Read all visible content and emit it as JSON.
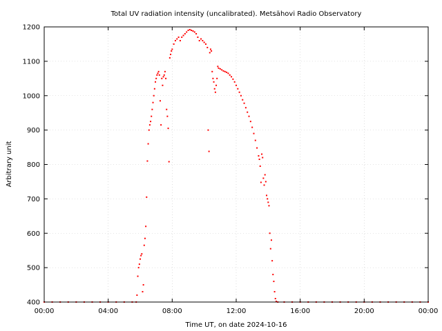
{
  "chart_data": {
    "type": "scatter",
    "title": "Total UV radiation intensity (uncalibrated). Metsähovi Radio Observatory",
    "xlabel": "Time UT, on date 2024-10-16",
    "ylabel": "Arbitrary unit",
    "xlim": [
      0,
      24
    ],
    "ylim": [
      400,
      1200
    ],
    "x_ticks": [
      0,
      4,
      8,
      12,
      16,
      20,
      24
    ],
    "x_tick_labels": [
      "00:00",
      "04:00",
      "08:00",
      "12:00",
      "16:00",
      "20:00",
      "00:00"
    ],
    "y_ticks": [
      400,
      500,
      600,
      700,
      800,
      900,
      1000,
      1100,
      1200
    ],
    "grid": true,
    "marker_color": "#ff0000",
    "series": [
      {
        "x_unit": "hours UT",
        "points": [
          [
            0.0,
            400
          ],
          [
            0.5,
            400
          ],
          [
            1.0,
            400
          ],
          [
            1.5,
            400
          ],
          [
            2.0,
            400
          ],
          [
            2.5,
            400
          ],
          [
            3.0,
            400
          ],
          [
            3.5,
            400
          ],
          [
            4.0,
            400
          ],
          [
            4.5,
            400
          ],
          [
            5.0,
            400
          ],
          [
            5.5,
            400
          ],
          [
            5.75,
            400
          ],
          [
            5.8,
            420
          ],
          [
            5.85,
            475
          ],
          [
            5.9,
            500
          ],
          [
            5.95,
            510
          ],
          [
            6.0,
            525
          ],
          [
            6.05,
            535
          ],
          [
            6.1,
            540
          ],
          [
            6.15,
            430
          ],
          [
            6.2,
            450
          ],
          [
            6.25,
            565
          ],
          [
            6.3,
            585
          ],
          [
            6.35,
            620
          ],
          [
            6.4,
            705
          ],
          [
            6.45,
            810
          ],
          [
            6.5,
            860
          ],
          [
            6.55,
            900
          ],
          [
            6.6,
            915
          ],
          [
            6.65,
            925
          ],
          [
            6.7,
            940
          ],
          [
            6.75,
            960
          ],
          [
            6.8,
            980
          ],
          [
            6.85,
            1000
          ],
          [
            6.9,
            1020
          ],
          [
            6.95,
            1040
          ],
          [
            7.0,
            1050
          ],
          [
            7.05,
            1060
          ],
          [
            7.1,
            1065
          ],
          [
            7.15,
            1070
          ],
          [
            7.2,
            1060
          ],
          [
            7.25,
            985
          ],
          [
            7.3,
            915
          ],
          [
            7.35,
            1050
          ],
          [
            7.4,
            1030
          ],
          [
            7.45,
            1055
          ],
          [
            7.5,
            1060
          ],
          [
            7.55,
            1070
          ],
          [
            7.6,
            1050
          ],
          [
            7.65,
            960
          ],
          [
            7.7,
            940
          ],
          [
            7.75,
            905
          ],
          [
            7.8,
            808
          ],
          [
            7.85,
            1110
          ],
          [
            7.9,
            1120
          ],
          [
            7.95,
            1130
          ],
          [
            8.0,
            1135
          ],
          [
            8.1,
            1150
          ],
          [
            8.2,
            1160
          ],
          [
            8.3,
            1165
          ],
          [
            8.4,
            1170
          ],
          [
            8.5,
            1160
          ],
          [
            8.6,
            1170
          ],
          [
            8.7,
            1175
          ],
          [
            8.8,
            1180
          ],
          [
            8.9,
            1185
          ],
          [
            9.0,
            1190
          ],
          [
            9.1,
            1192
          ],
          [
            9.2,
            1190
          ],
          [
            9.3,
            1188
          ],
          [
            9.4,
            1185
          ],
          [
            9.5,
            1180
          ],
          [
            9.6,
            1170
          ],
          [
            9.7,
            1160
          ],
          [
            9.8,
            1165
          ],
          [
            9.9,
            1160
          ],
          [
            10.0,
            1155
          ],
          [
            10.1,
            1150
          ],
          [
            10.2,
            1140
          ],
          [
            10.25,
            900
          ],
          [
            10.3,
            838
          ],
          [
            10.35,
            1125
          ],
          [
            10.4,
            1135
          ],
          [
            10.45,
            1130
          ],
          [
            10.5,
            1070
          ],
          [
            10.55,
            1050
          ],
          [
            10.6,
            1040
          ],
          [
            10.65,
            1020
          ],
          [
            10.7,
            1010
          ],
          [
            10.75,
            1030
          ],
          [
            10.8,
            1050
          ],
          [
            10.85,
            1085
          ],
          [
            10.9,
            1080
          ],
          [
            11.0,
            1078
          ],
          [
            11.1,
            1075
          ],
          [
            11.2,
            1072
          ],
          [
            11.3,
            1070
          ],
          [
            11.4,
            1068
          ],
          [
            11.5,
            1065
          ],
          [
            11.6,
            1060
          ],
          [
            11.7,
            1055
          ],
          [
            11.8,
            1048
          ],
          [
            11.9,
            1040
          ],
          [
            12.0,
            1030
          ],
          [
            12.1,
            1020
          ],
          [
            12.2,
            1010
          ],
          [
            12.3,
            1000
          ],
          [
            12.4,
            988
          ],
          [
            12.5,
            978
          ],
          [
            12.6,
            965
          ],
          [
            12.7,
            952
          ],
          [
            12.8,
            940
          ],
          [
            12.9,
            925
          ],
          [
            13.0,
            908
          ],
          [
            13.1,
            890
          ],
          [
            13.2,
            870
          ],
          [
            13.3,
            848
          ],
          [
            13.4,
            825
          ],
          [
            13.45,
            815
          ],
          [
            13.5,
            795
          ],
          [
            13.55,
            748
          ],
          [
            13.6,
            830
          ],
          [
            13.65,
            820
          ],
          [
            13.7,
            760
          ],
          [
            13.75,
            740
          ],
          [
            13.8,
            770
          ],
          [
            13.85,
            750
          ],
          [
            13.9,
            710
          ],
          [
            13.95,
            700
          ],
          [
            14.0,
            690
          ],
          [
            14.05,
            680
          ],
          [
            14.1,
            600
          ],
          [
            14.15,
            555
          ],
          [
            14.2,
            580
          ],
          [
            14.25,
            520
          ],
          [
            14.3,
            480
          ],
          [
            14.35,
            460
          ],
          [
            14.4,
            430
          ],
          [
            14.45,
            410
          ],
          [
            14.5,
            402
          ],
          [
            14.6,
            400
          ],
          [
            15.0,
            400
          ],
          [
            15.5,
            400
          ],
          [
            16.0,
            400
          ],
          [
            16.5,
            400
          ],
          [
            17.0,
            400
          ],
          [
            17.5,
            400
          ],
          [
            18.0,
            400
          ],
          [
            18.5,
            400
          ],
          [
            19.0,
            400
          ],
          [
            19.5,
            400
          ],
          [
            20.0,
            400
          ],
          [
            20.5,
            400
          ],
          [
            21.0,
            400
          ],
          [
            21.5,
            400
          ],
          [
            22.0,
            400
          ],
          [
            22.5,
            400
          ],
          [
            23.0,
            400
          ],
          [
            23.5,
            400
          ],
          [
            24.0,
            400
          ]
        ]
      }
    ]
  }
}
